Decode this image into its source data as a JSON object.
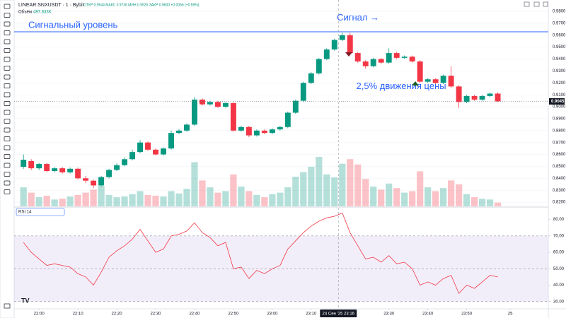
{
  "chart_data": [
    {
      "type": "candlestick",
      "title": "LINEAR:SNXUSDT · 1 · Bybit",
      "ohlc_text": "ОТКР 0.9544 МАКС 0.9736 МИН 0.9526 ЗАКР 0.9600 +0.0056 (+0.59%)",
      "volume_name": "Объём",
      "open": [
        0.8496,
        0.8544,
        0.8484,
        0.852,
        0.8461,
        0.8484,
        0.845,
        0.848,
        0.84,
        0.838,
        0.834,
        0.841,
        0.847,
        0.851,
        0.856,
        0.862,
        0.87,
        0.864,
        0.86,
        0.865,
        0.878,
        0.88,
        0.885,
        0.906,
        0.902,
        0.904,
        0.9,
        0.903,
        0.88,
        0.883,
        0.876,
        0.88,
        0.878,
        0.881,
        0.883,
        0.895,
        0.905,
        0.92,
        0.928,
        0.94,
        0.948,
        0.956,
        0.96,
        0.945,
        0.938,
        0.934,
        0.94,
        0.937,
        0.945,
        0.941,
        0.942,
        0.938,
        0.921,
        0.923,
        0.92,
        0.926,
        0.917,
        0.904,
        0.909,
        0.906,
        0.909,
        0.911
      ],
      "high": [
        0.86,
        0.856,
        0.853,
        0.853,
        0.8495,
        0.8495,
        0.849,
        0.849,
        0.842,
        0.839,
        0.842,
        0.848,
        0.8525,
        0.8575,
        0.864,
        0.872,
        0.871,
        0.865,
        0.866,
        0.88,
        0.8815,
        0.886,
        0.908,
        0.907,
        0.905,
        0.905,
        0.904,
        0.904,
        0.884,
        0.884,
        0.881,
        0.881,
        0.882,
        0.884,
        0.896,
        0.906,
        0.921,
        0.929,
        0.941,
        0.949,
        0.957,
        0.962,
        0.962,
        0.946,
        0.939,
        0.941,
        0.941,
        0.949,
        0.946,
        0.943,
        0.943,
        0.939,
        0.924,
        0.924,
        0.927,
        0.934,
        0.918,
        0.91,
        0.91,
        0.91,
        0.912,
        0.912
      ],
      "low": [
        0.848,
        0.847,
        0.847,
        0.845,
        0.845,
        0.844,
        0.844,
        0.839,
        0.836,
        0.8318,
        0.833,
        0.84,
        0.846,
        0.85,
        0.855,
        0.861,
        0.863,
        0.859,
        0.859,
        0.864,
        0.877,
        0.879,
        0.884,
        0.901,
        0.901,
        0.899,
        0.899,
        0.879,
        0.879,
        0.8745,
        0.875,
        0.877,
        0.877,
        0.88,
        0.882,
        0.894,
        0.904,
        0.919,
        0.927,
        0.939,
        0.947,
        0.955,
        0.944,
        0.937,
        0.932,
        0.933,
        0.936,
        0.936,
        0.94,
        0.94,
        0.937,
        0.92,
        0.92,
        0.919,
        0.919,
        0.916,
        0.899,
        0.903,
        0.905,
        0.905,
        0.908,
        0.904
      ],
      "close": [
        0.8556,
        0.8484,
        0.852,
        0.8461,
        0.8484,
        0.845,
        0.848,
        0.84,
        0.838,
        0.834,
        0.841,
        0.847,
        0.851,
        0.856,
        0.862,
        0.87,
        0.864,
        0.86,
        0.865,
        0.878,
        0.88,
        0.885,
        0.906,
        0.902,
        0.904,
        0.9,
        0.903,
        0.88,
        0.883,
        0.876,
        0.88,
        0.878,
        0.881,
        0.883,
        0.895,
        0.905,
        0.92,
        0.928,
        0.94,
        0.948,
        0.956,
        0.96,
        0.945,
        0.938,
        0.934,
        0.94,
        0.937,
        0.945,
        0.941,
        0.942,
        0.938,
        0.921,
        0.923,
        0.92,
        0.926,
        0.917,
        0.904,
        0.909,
        0.906,
        0.909,
        0.911,
        0.9045
      ],
      "volume": [
        2500,
        1800,
        1200,
        1400,
        900,
        1000,
        1300,
        1500,
        1800,
        2200,
        2700,
        1500,
        1200,
        1300,
        1600,
        2000,
        1500,
        1400,
        1300,
        2000,
        1700,
        2300,
        5800,
        3400,
        2500,
        1800,
        2000,
        4200,
        2600,
        2000,
        1500,
        1200,
        1600,
        1800,
        2500,
        3900,
        4500,
        5200,
        6500,
        4200,
        3800,
        5600,
        6200,
        5500,
        3600,
        2600,
        2200,
        3000,
        2400,
        1800,
        2000,
        4600,
        2500,
        2000,
        2400,
        3400,
        2900,
        1600,
        1200,
        1000,
        900,
        497.833
      ],
      "volume_last_label": "497.833K",
      "up_color": "#089981",
      "down_color": "#f23645",
      "ylim": [
        0.8153,
        0.9895
      ],
      "yticks": [
        {
          "value": 0.82,
          "label": "0.8200"
        },
        {
          "value": 0.83,
          "label": "0.8300"
        },
        {
          "value": 0.84,
          "label": "0.8400"
        },
        {
          "value": 0.85,
          "label": "0.8500"
        },
        {
          "value": 0.86,
          "label": "0.8600"
        },
        {
          "value": 0.87,
          "label": "0.8700"
        },
        {
          "value": 0.88,
          "label": "0.8800"
        },
        {
          "value": 0.89,
          "label": "0.8900"
        },
        {
          "value": 0.9,
          "label": "0.9000"
        },
        {
          "value": 0.91,
          "label": "0.9100"
        },
        {
          "value": 0.92,
          "label": "0.9200"
        },
        {
          "value": 0.93,
          "label": "0.9300"
        },
        {
          "value": 0.94,
          "label": "0.9400"
        },
        {
          "value": 0.95,
          "label": "0.9500"
        },
        {
          "value": 0.96,
          "label": "0.9600"
        },
        {
          "value": 0.97,
          "label": "0.9700"
        },
        {
          "value": 0.98,
          "label": "0.9800"
        }
      ],
      "current_price": {
        "value": 0.9045,
        "label": "0.9045"
      },
      "signal_level": {
        "value": 0.9628,
        "label": "Сигнальный уровень",
        "color": "#2962ff"
      },
      "annotations": [
        {
          "text": "Сигнал →",
          "x": 40.3,
          "y": 0.9745
        },
        {
          "text": "2,5% движения цены",
          "x": 42.8,
          "y": 0.917
        }
      ],
      "grid": true
    },
    {
      "type": "line",
      "title": "RSI 14",
      "values": [
        66,
        60,
        56,
        52,
        53,
        52,
        51,
        47,
        45,
        40,
        48,
        57,
        61,
        64,
        68,
        74,
        67,
        60,
        62,
        70,
        71,
        73,
        78,
        72,
        69,
        64,
        66,
        50,
        51,
        44,
        49,
        47,
        50,
        52,
        62,
        67,
        72,
        76,
        79,
        81,
        82,
        84,
        72,
        64,
        56,
        57,
        54,
        58,
        53,
        54,
        50,
        40,
        42,
        40,
        44,
        46,
        35,
        40,
        38,
        42,
        46,
        45
      ],
      "color": "#f23645",
      "ylim": [
        26,
        87.6
      ],
      "yticks": [
        {
          "value": 30,
          "label": "30.00"
        },
        {
          "value": 40,
          "label": "40.00"
        },
        {
          "value": 50,
          "label": "50.00"
        },
        {
          "value": 60,
          "label": "60.00"
        },
        {
          "value": 70,
          "label": "70.00"
        },
        {
          "value": 80,
          "label": "80.00"
        }
      ],
      "band": [
        30,
        70
      ],
      "band_color": "#7e57c2",
      "mid_level": 50,
      "xlim": [
        -1.2,
        67.5
      ],
      "xticks": [
        {
          "value": 2,
          "label": "22:00"
        },
        {
          "value": 7,
          "label": "22:10"
        },
        {
          "value": 12,
          "label": "22:20"
        },
        {
          "value": 17,
          "label": "22:30"
        },
        {
          "value": 22,
          "label": "22:40"
        },
        {
          "value": 27,
          "label": "22:50"
        },
        {
          "value": 32,
          "label": "23:00"
        },
        {
          "value": 37,
          "label": "23:10"
        },
        {
          "value": 47,
          "label": "23:30"
        },
        {
          "value": 52,
          "label": "23:40"
        },
        {
          "value": 57,
          "label": "23:50"
        },
        {
          "value": 62.6,
          "label": "25"
        }
      ],
      "crosshair": {
        "value": 40.5,
        "label": "24 Сен '25 23:16"
      }
    }
  ]
}
